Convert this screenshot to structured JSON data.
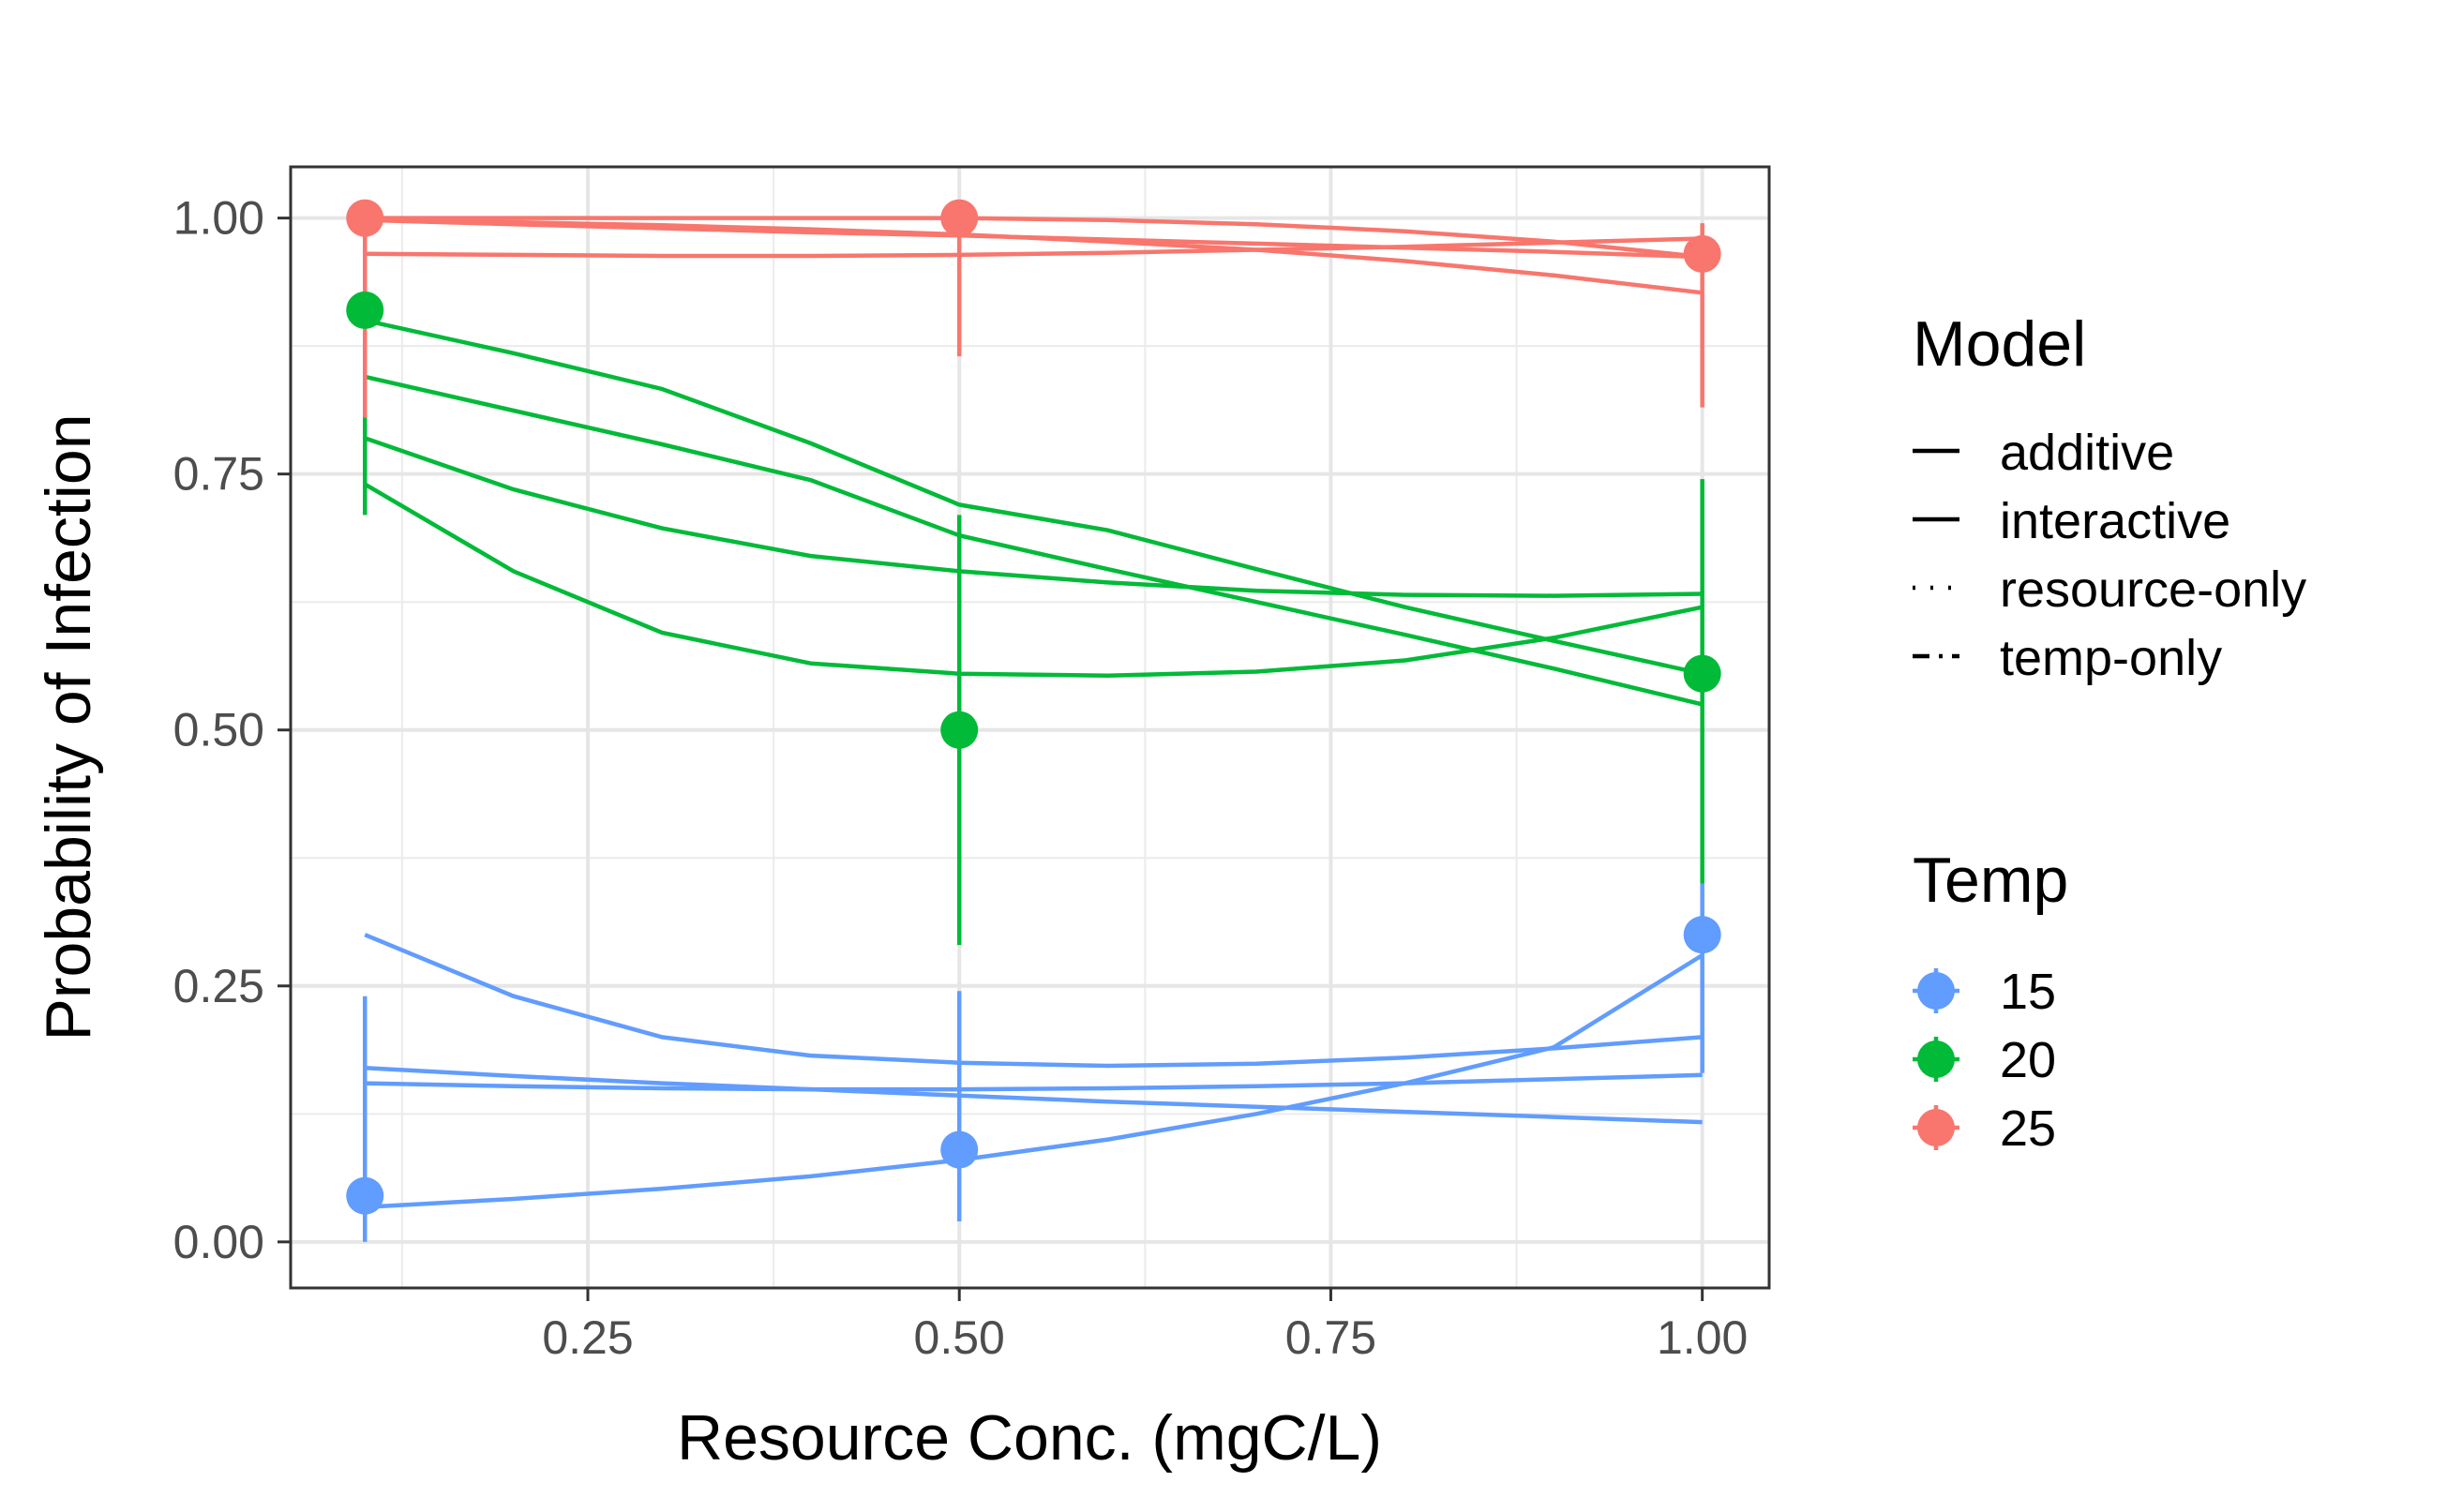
{
  "chart_data": {
    "type": "line",
    "xlabel": "Resource Conc. (mgC/L)",
    "ylabel": "Probability of Infection",
    "xlim": [
      0.05,
      1.045
    ],
    "ylim": [
      -0.045,
      1.05
    ],
    "x_ticks": [
      0.25,
      0.5,
      0.75,
      1.0
    ],
    "x_tick_labels": [
      "0.25",
      "0.50",
      "0.75",
      "1.00"
    ],
    "y_ticks": [
      0.0,
      0.25,
      0.5,
      0.75,
      1.0
    ],
    "y_tick_labels": [
      "0.00",
      "0.25",
      "0.50",
      "0.75",
      "1.00"
    ],
    "grid": true,
    "legend_position": "right",
    "legends": [
      {
        "title": "Model",
        "entries": [
          {
            "label": "additive",
            "dash": "long-dash"
          },
          {
            "label": "interactive",
            "dash": "solid"
          },
          {
            "label": "resource-only",
            "dash": "dotted"
          },
          {
            "label": "temp-only",
            "dash": "dot-dash"
          }
        ]
      },
      {
        "title": "Temp",
        "entries": [
          {
            "label": "15",
            "color": "#619CFF"
          },
          {
            "label": "20",
            "color": "#00BA38"
          },
          {
            "label": "25",
            "color": "#F8766D"
          }
        ]
      }
    ],
    "observed": [
      {
        "temp": "15",
        "color": "#619CFF",
        "points": [
          {
            "x": 0.1,
            "y": 0.045,
            "lo": 0.0,
            "hi": 0.24
          },
          {
            "x": 0.5,
            "y": 0.09,
            "lo": 0.02,
            "hi": 0.245
          },
          {
            "x": 1.0,
            "y": 0.3,
            "lo": 0.165,
            "hi": 0.35
          }
        ]
      },
      {
        "temp": "20",
        "color": "#00BA38",
        "points": [
          {
            "x": 0.1,
            "y": 0.91,
            "lo": 0.71,
            "hi": 0.98
          },
          {
            "x": 0.5,
            "y": 0.5,
            "lo": 0.29,
            "hi": 0.71
          },
          {
            "x": 1.0,
            "y": 0.555,
            "lo": 0.35,
            "hi": 0.745
          }
        ]
      },
      {
        "temp": "25",
        "color": "#F8766D",
        "points": [
          {
            "x": 0.1,
            "y": 1.0,
            "lo": 0.805,
            "hi": 1.0
          },
          {
            "x": 0.5,
            "y": 1.0,
            "lo": 0.865,
            "hi": 1.0
          },
          {
            "x": 1.0,
            "y": 0.965,
            "lo": 0.815,
            "hi": 0.995
          }
        ]
      }
    ],
    "x": [
      0.1,
      0.2,
      0.3,
      0.4,
      0.5,
      0.6,
      0.7,
      0.8,
      0.9,
      1.0
    ],
    "series": [
      {
        "temp": "15",
        "model": "additive",
        "color": "#619CFF",
        "values": [
          0.155,
          0.152,
          0.15,
          0.149,
          0.149,
          0.15,
          0.152,
          0.155,
          0.159,
          0.163
        ]
      },
      {
        "temp": "15",
        "model": "interactive",
        "color": "#619CFF",
        "values": [
          0.034,
          0.042,
          0.052,
          0.064,
          0.08,
          0.1,
          0.125,
          0.155,
          0.19,
          0.28
        ]
      },
      {
        "temp": "15",
        "model": "resource-only",
        "color": "#619CFF",
        "values": [
          0.3,
          0.24,
          0.2,
          0.182,
          0.175,
          0.172,
          0.174,
          0.18,
          0.189,
          0.2
        ]
      },
      {
        "temp": "15",
        "model": "temp-only",
        "color": "#619CFF",
        "values": [
          0.17,
          0.162,
          0.155,
          0.149,
          0.143,
          0.137,
          0.132,
          0.127,
          0.122,
          0.117
        ]
      },
      {
        "temp": "20",
        "model": "additive",
        "color": "#00BA38",
        "values": [
          0.785,
          0.735,
          0.697,
          0.67,
          0.655,
          0.644,
          0.636,
          0.632,
          0.631,
          0.633
        ]
      },
      {
        "temp": "20",
        "model": "interactive",
        "color": "#00BA38",
        "values": [
          0.845,
          0.812,
          0.779,
          0.744,
          0.69,
          0.657,
          0.625,
          0.593,
          0.56,
          0.525
        ]
      },
      {
        "temp": "20",
        "model": "resource-only",
        "color": "#00BA38",
        "values": [
          0.74,
          0.655,
          0.595,
          0.565,
          0.555,
          0.553,
          0.557,
          0.568,
          0.59,
          0.62
        ]
      },
      {
        "temp": "20",
        "model": "temp-only",
        "color": "#00BA38",
        "values": [
          0.9,
          0.868,
          0.833,
          0.78,
          0.72,
          0.695,
          0.657,
          0.62,
          0.587,
          0.555
        ]
      },
      {
        "temp": "25",
        "model": "additive",
        "color": "#F8766D",
        "values": [
          0.998,
          0.994,
          0.99,
          0.986,
          0.983,
          0.979,
          0.975,
          0.971,
          0.967,
          0.962
        ]
      },
      {
        "temp": "25",
        "model": "interactive",
        "color": "#F8766D",
        "values": [
          1.0,
          1.0,
          1.0,
          1.0,
          1.0,
          0.998,
          0.994,
          0.987,
          0.977,
          0.962
        ]
      },
      {
        "temp": "25",
        "model": "resource-only",
        "color": "#F8766D",
        "values": [
          0.965,
          0.964,
          0.963,
          0.963,
          0.964,
          0.966,
          0.969,
          0.972,
          0.976,
          0.98
        ]
      },
      {
        "temp": "25",
        "model": "temp-only",
        "color": "#F8766D",
        "values": [
          0.998,
          0.996,
          0.993,
          0.989,
          0.984,
          0.977,
          0.969,
          0.958,
          0.944,
          0.927
        ]
      }
    ]
  }
}
